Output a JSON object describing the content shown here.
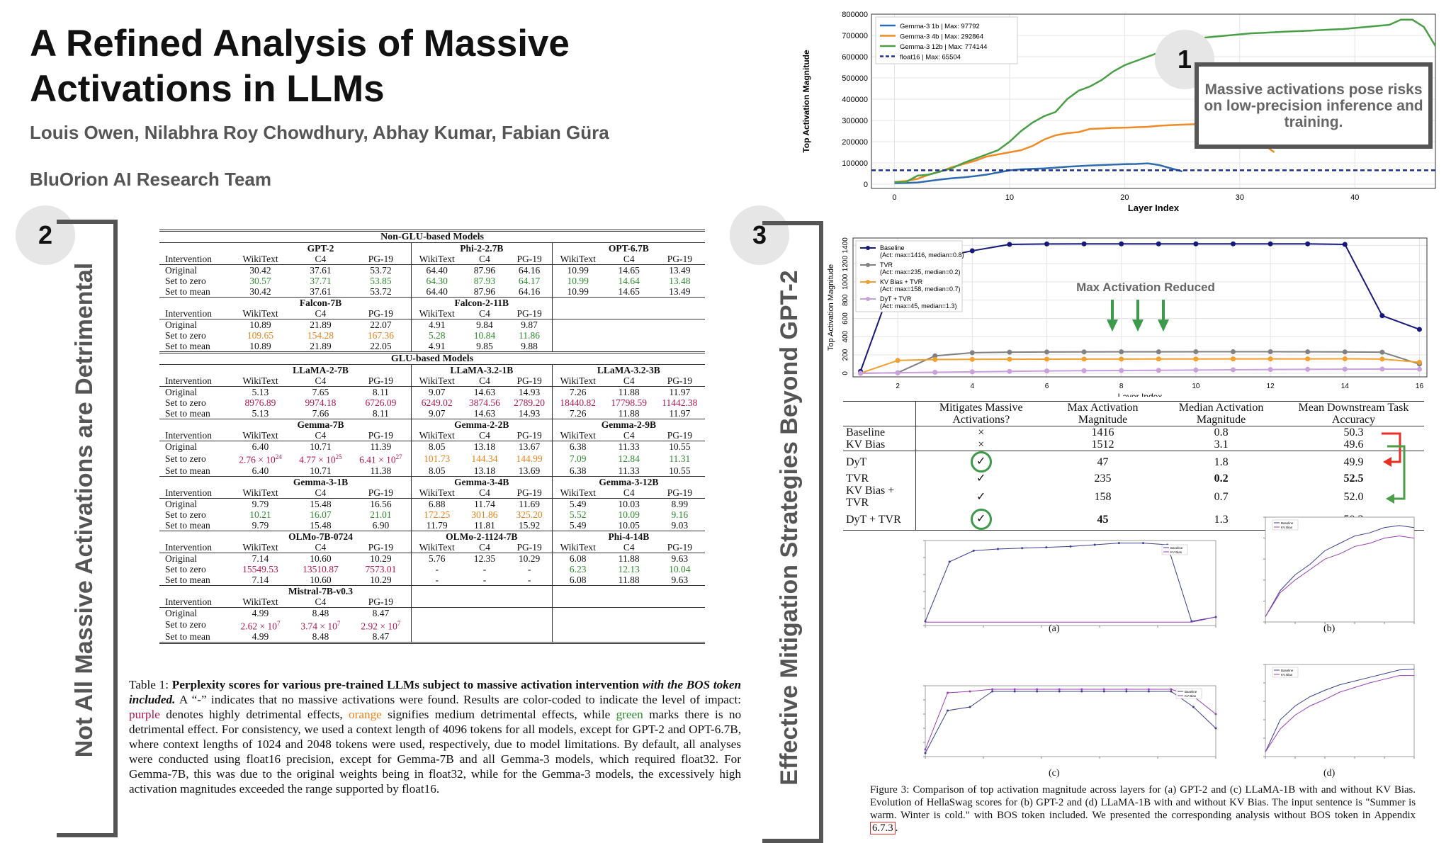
{
  "title": "A Refined Analysis of Massive Activations in LLMs",
  "authors": "Louis Owen, Nilabhra Roy Chowdhury, Abhay Kumar, Fabian Güra",
  "team": "BluOrion AI Research Team",
  "badges": [
    "1",
    "2",
    "3"
  ],
  "section2_label": "Not All Massive Activations are Detrimental",
  "section3_label": "Effective Mitigation Strategies Beyond GPT-2",
  "callout": "Massive activations pose risks on low-precision inference and training.",
  "table1": {
    "sections": {
      "non_glu": "Non-GLU-based Models",
      "glu": "GLU-based Models"
    },
    "col_headers": [
      "WikiText",
      "C4",
      "PG-19"
    ],
    "row_labels": {
      "intervention": "Intervention",
      "original": "Original",
      "zero": "Set to zero",
      "mean": "Set to mean"
    },
    "models": {
      "gpt2": "GPT-2",
      "phi2": "Phi-2-2.7B",
      "opt": "OPT-6.7B",
      "falcon7": "Falcon-7B",
      "falcon11": "Falcon-2-11B",
      "llama27": "LLaMA-2-7B",
      "llama321": "LLaMA-3.2-1B",
      "llama323": "LLaMA-3.2-3B",
      "gemma7": "Gemma-7B",
      "gemma22": "Gemma-2-2B",
      "gemma29": "Gemma-2-9B",
      "gemma31": "Gemma-3-1B",
      "gemma34": "Gemma-3-4B",
      "gemma312": "Gemma-3-12B",
      "olmo7": "OLMo-7B-0724",
      "olmo2": "OLMo-2-1124-7B",
      "phi4": "Phi-4-14B",
      "mistral": "Mistral-7B-v0.3"
    },
    "v": {
      "gpt2_o": [
        "30.42",
        "37.61",
        "53.72"
      ],
      "gpt2_z": [
        "30.57",
        "37.71",
        "53.85"
      ],
      "gpt2_m": [
        "30.42",
        "37.61",
        "53.72"
      ],
      "phi2_o": [
        "64.40",
        "87.96",
        "64.16"
      ],
      "phi2_z": [
        "64.30",
        "87.93",
        "64.17"
      ],
      "phi2_m": [
        "64.40",
        "87.96",
        "64.16"
      ],
      "opt_o": [
        "10.99",
        "14.65",
        "13.49"
      ],
      "opt_z": [
        "10.99",
        "14.64",
        "13.48"
      ],
      "opt_m": [
        "10.99",
        "14.65",
        "13.49"
      ],
      "f7_o": [
        "10.89",
        "21.89",
        "22.07"
      ],
      "f7_z": [
        "109.65",
        "154.28",
        "167.36"
      ],
      "f7_m": [
        "10.89",
        "21.89",
        "22.05"
      ],
      "f11_o": [
        "4.91",
        "9.84",
        "9.87"
      ],
      "f11_z": [
        "5.28",
        "10.84",
        "11.86"
      ],
      "f11_m": [
        "4.91",
        "9.85",
        "9.88"
      ],
      "l27_o": [
        "5.13",
        "7.65",
        "8.11"
      ],
      "l27_z": [
        "8976.89",
        "9974.18",
        "6726.09"
      ],
      "l27_m": [
        "5.13",
        "7.66",
        "8.11"
      ],
      "l321_o": [
        "9.07",
        "14.63",
        "14.93"
      ],
      "l321_z": [
        "6249.02",
        "3874.56",
        "2789.20"
      ],
      "l321_m": [
        "9.07",
        "14.63",
        "14.93"
      ],
      "l323_o": [
        "7.26",
        "11.88",
        "11.97"
      ],
      "l323_z": [
        "18440.82",
        "17798.59",
        "11442.38"
      ],
      "l323_m": [
        "7.26",
        "11.88",
        "11.97"
      ],
      "g7_o": [
        "6.40",
        "10.71",
        "11.39"
      ],
      "g7_m": [
        "6.40",
        "10.71",
        "11.38"
      ],
      "g7_z_base": [
        "2.76 × 10",
        "4.77 × 10",
        "6.41 × 10"
      ],
      "g7_z_exp": [
        "24",
        "25",
        "27"
      ],
      "g22_o": [
        "8.05",
        "13.18",
        "13.67"
      ],
      "g22_z": [
        "101.73",
        "144.34",
        "144.99"
      ],
      "g22_m": [
        "8.05",
        "13.18",
        "13.69"
      ],
      "g29_o": [
        "6.38",
        "11.33",
        "10.55"
      ],
      "g29_z": [
        "7.09",
        "12.84",
        "11.31"
      ],
      "g29_m": [
        "6.38",
        "11.33",
        "10.55"
      ],
      "g31_o": [
        "9.79",
        "15.48",
        "16.56"
      ],
      "g31_z": [
        "10.21",
        "16.07",
        "21.01"
      ],
      "g31_m": [
        "9.79",
        "15.48",
        "6.90"
      ],
      "g34_o": [
        "6.88",
        "11.74",
        "11.69"
      ],
      "g34_z": [
        "172.25",
        "301.86",
        "325.20"
      ],
      "g34_m": [
        "11.79",
        "11.81",
        "15.92"
      ],
      "g312_o": [
        "5.49",
        "10.03",
        "8.99"
      ],
      "g312_z": [
        "5.52",
        "10.09",
        "9.16"
      ],
      "g312_m": [
        "5.49",
        "10.05",
        "9.03"
      ],
      "o7_o": [
        "7.14",
        "10.60",
        "10.29"
      ],
      "o7_z": [
        "15549.53",
        "13510.87",
        "7573.01"
      ],
      "o7_m": [
        "7.14",
        "10.60",
        "10.29"
      ],
      "o2_o": [
        "5.76",
        "12.35",
        "10.29"
      ],
      "o2_z": [
        "-",
        "-",
        "-"
      ],
      "o2_m": [
        "-",
        "-",
        "-"
      ],
      "p4_o": [
        "6.08",
        "11.88",
        "9.63"
      ],
      "p4_z": [
        "6.23",
        "12.13",
        "10.04"
      ],
      "p4_m": [
        "6.08",
        "11.88",
        "9.63"
      ],
      "mi_o": [
        "4.99",
        "8.48",
        "8.47"
      ],
      "mi_m": [
        "4.99",
        "8.48",
        "8.47"
      ],
      "mi_z_base": [
        "2.62 × 10",
        "3.74 × 10",
        "2.92 × 10"
      ],
      "mi_z_exp": [
        "7",
        "7",
        "7"
      ]
    }
  },
  "caption1": {
    "label": "Table 1:",
    "bold": "Perplexity scores for various pre-trained LLMs subject to massive activation intervention",
    "bold_italic": "with the BOS token included.",
    "t1": "A “-” indicates that no massive activations were found. Results are color-coded to indicate the level of impact:",
    "purple": "purple",
    "t2": "denotes highly detrimental effects,",
    "orange": "orange",
    "t3": "signifies medium detrimental effects, while",
    "green": "green",
    "t4": "marks there is no detrimental effect. For consistency, we used a context length of 4096 tokens for all models, except for GPT-2 and OPT-6.7B, where context lengths of 1024 and 2048 tokens were used, respectively, due to model limitations. By default, all analyses were conducted using float16 precision, except for Gemma-7B and all Gemma-3 models, which required float32. For Gemma-7B, this was due to the original weights being in float32, while for the Gemma-3 models, the excessively high activation magnitudes exceeded the range supported by float16."
  },
  "table2": {
    "headers": [
      "Mitigates Massive Activations?",
      "Max Activation Magnitude",
      "Median Activation Magnitude",
      "Mean Downstream Task Accuracy"
    ],
    "rows": [
      {
        "label": "Baseline",
        "mit": "×",
        "max": "1416",
        "median": "0.8",
        "acc": "50.3"
      },
      {
        "label": "KV Bias",
        "mit": "×",
        "max": "1512",
        "median": "3.1",
        "acc": "49.6"
      },
      {
        "label": "DyT",
        "mit": "✓",
        "max": "47",
        "median": "1.8",
        "acc": "49.9"
      },
      {
        "label": "TVR",
        "mit": "✓",
        "max": "235",
        "median": "0.2",
        "acc": "52.5"
      },
      {
        "label": "KV Bias + TVR",
        "mit": "✓",
        "max": "158",
        "median": "0.7",
        "acc": "52.0"
      },
      {
        "label": "DyT + TVR",
        "mit": "✓",
        "max": "45",
        "median": "1.3",
        "acc": "50.3"
      }
    ]
  },
  "caption3": {
    "text": "Figure 3: Comparison of top activation magnitude across layers for (a) GPT-2 and (c) LLaMA-1B with and without KV Bias. Evolution of HellaSwag scores for (b) GPT-2 and (d) LLaMA-1B with and without KV Bias. The input sentence is \"Summer is warm. Winter is cold.\" with BOS token included. We presented the corresponding analysis without BOS token in Appendix",
    "ref": "6.7.3",
    "end": "."
  },
  "max_reduced_label": "Max Activation Reduced",
  "chart_data": [
    {
      "type": "line",
      "title": "",
      "xlabel": "Layer Index",
      "ylabel": "Top Activation Magnitude",
      "xlim": [
        -2,
        47
      ],
      "ylim": [
        -20000,
        800000
      ],
      "xticks": [
        0,
        10,
        20,
        30,
        40
      ],
      "yticks": [
        0,
        100000,
        200000,
        300000,
        400000,
        500000,
        600000,
        700000,
        800000
      ],
      "legend_position": "top-left",
      "series": [
        {
          "name": "Gemma-3 1b   | Max: 97792",
          "color": "#2f6aad",
          "x": [
            0,
            1,
            2,
            3,
            4,
            5,
            6,
            7,
            8,
            9,
            10,
            11,
            12,
            13,
            14,
            15,
            16,
            17,
            18,
            19,
            20,
            21,
            22,
            23,
            24,
            25
          ],
          "values": [
            5000,
            6000,
            8000,
            15000,
            22000,
            28000,
            32000,
            38000,
            45000,
            55000,
            65000,
            70000,
            72000,
            74000,
            78000,
            82000,
            85000,
            88000,
            90000,
            92000,
            94000,
            95000,
            97792,
            90000,
            75000,
            60000
          ]
        },
        {
          "name": "Gemma-3 4b   | Max: 292864",
          "color": "#f08a24",
          "x": [
            0,
            1,
            2,
            3,
            4,
            5,
            6,
            7,
            8,
            9,
            10,
            11,
            12,
            13,
            14,
            15,
            16,
            17,
            18,
            19,
            20,
            21,
            22,
            23,
            24,
            25,
            26,
            27,
            28,
            29,
            30,
            31,
            32,
            33
          ],
          "values": [
            10000,
            15000,
            25000,
            45000,
            60000,
            80000,
            95000,
            110000,
            130000,
            140000,
            150000,
            160000,
            180000,
            210000,
            230000,
            240000,
            245000,
            260000,
            262000,
            265000,
            266000,
            268000,
            270000,
            275000,
            278000,
            280000,
            282000,
            285000,
            288000,
            292864,
            290000,
            230000,
            190000,
            150000
          ]
        },
        {
          "name": "Gemma-3 12b | Max: 774144",
          "color": "#4a9e45",
          "x": [
            0,
            1,
            2,
            3,
            4,
            5,
            6,
            7,
            8,
            9,
            10,
            11,
            12,
            13,
            14,
            15,
            16,
            17,
            18,
            19,
            20,
            21,
            22,
            23,
            24,
            25,
            26,
            27,
            28,
            29,
            30,
            31,
            32,
            33,
            34,
            35,
            36,
            37,
            38,
            39,
            40,
            41,
            42,
            43,
            44,
            45,
            46,
            47
          ],
          "values": [
            10000,
            10000,
            40000,
            45000,
            60000,
            75000,
            100000,
            120000,
            140000,
            160000,
            200000,
            250000,
            290000,
            320000,
            340000,
            400000,
            440000,
            460000,
            490000,
            530000,
            560000,
            580000,
            600000,
            620000,
            640000,
            660000,
            680000,
            690000,
            695000,
            700000,
            705000,
            710000,
            712000,
            715000,
            718000,
            720000,
            722000,
            725000,
            728000,
            730000,
            735000,
            740000,
            745000,
            750000,
            774144,
            774144,
            740000,
            650000
          ]
        },
        {
          "name": "float16           | Max: 65504",
          "color": "#1f2f8f",
          "dashed": true,
          "x": [
            -2,
            47
          ],
          "values": [
            65504,
            65504
          ]
        }
      ]
    },
    {
      "type": "line",
      "title": "",
      "xlabel": "Layer Index",
      "ylabel": "Top Activation Magnitude",
      "xlim": [
        0.8,
        16.2
      ],
      "ylim": [
        -40,
        1480
      ],
      "xticks": [
        2,
        4,
        6,
        8,
        10,
        12,
        14,
        16
      ],
      "yticks": [
        0,
        200,
        400,
        600,
        800,
        1000,
        1200,
        1400
      ],
      "legend_position": "top-left",
      "series": [
        {
          "name": "Baseline",
          "legend_detail": "(Act: max=1416, median=0.8)",
          "color": "#17197a",
          "x": [
            1,
            2,
            3,
            4,
            5,
            6,
            7,
            8,
            9,
            10,
            11,
            12,
            13,
            14,
            15,
            16
          ],
          "values": [
            20,
            1150,
            1260,
            1340,
            1410,
            1415,
            1416,
            1416,
            1416,
            1416,
            1416,
            1416,
            1416,
            1410,
            630,
            480
          ]
        },
        {
          "name": "TVR",
          "legend_detail": "(Act: max=235, median=0.2)",
          "color": "#808080",
          "x": [
            1,
            2,
            3,
            4,
            5,
            6,
            7,
            8,
            9,
            10,
            11,
            12,
            13,
            14,
            15,
            16
          ],
          "values": [
            0,
            5,
            190,
            225,
            230,
            232,
            233,
            234,
            234,
            235,
            235,
            235,
            234,
            233,
            230,
            100
          ]
        },
        {
          "name": "KV Bias + TVR",
          "legend_detail": "(Act: max=158, median=0.7)",
          "color": "#f0a030",
          "x": [
            1,
            2,
            3,
            4,
            5,
            6,
            7,
            8,
            9,
            10,
            11,
            12,
            13,
            14,
            15,
            16
          ],
          "values": [
            0,
            140,
            150,
            152,
            153,
            154,
            155,
            155,
            156,
            156,
            157,
            157,
            157,
            158,
            155,
            120
          ]
        },
        {
          "name": "DyT + TVR",
          "legend_detail": "(Act: max=45, median=1.3)",
          "color": "#c9a0dc",
          "x": [
            1,
            2,
            3,
            4,
            5,
            6,
            7,
            8,
            9,
            10,
            11,
            12,
            13,
            14,
            15,
            16
          ],
          "values": [
            0,
            5,
            10,
            15,
            20,
            25,
            28,
            30,
            32,
            35,
            38,
            40,
            42,
            44,
            45,
            44
          ]
        }
      ]
    }
  ],
  "fig3": {
    "a": {
      "label": "(a)",
      "legend": [
        "Baseline",
        "KV Bias"
      ]
    },
    "b": {
      "label": "(b)",
      "legend": [
        "Baseline",
        "KV Bias"
      ]
    },
    "c": {
      "label": "(c)",
      "legend": [
        "Baseline",
        "KV Bias"
      ]
    },
    "d": {
      "label": "(d)",
      "legend": [
        "Baseline",
        "KV Bias"
      ]
    }
  }
}
